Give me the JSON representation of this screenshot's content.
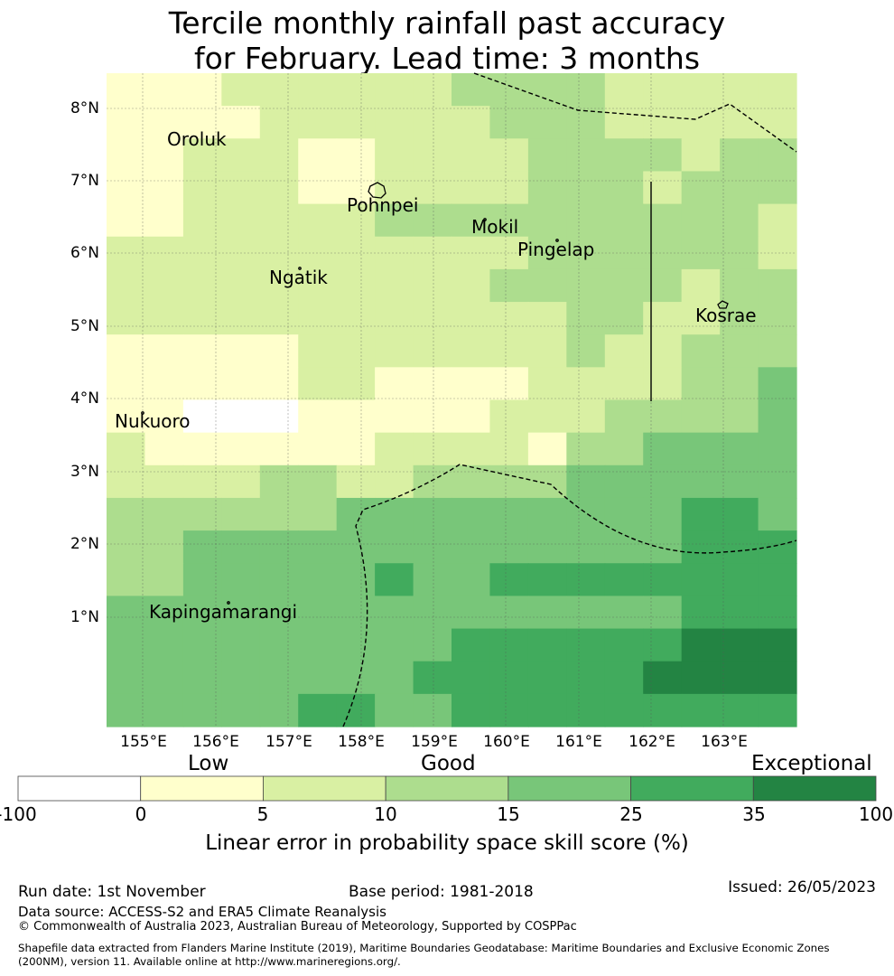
{
  "title": {
    "line1": "Tercile monthly rainfall past accuracy",
    "line2": "for February. Lead time: 3 months"
  },
  "map": {
    "lat_labels": [
      "8°N",
      "7°N",
      "6°N",
      "5°N",
      "4°N",
      "3°N",
      "2°N",
      "1°N"
    ],
    "lon_labels": [
      "155°E",
      "156°E",
      "157°E",
      "158°E",
      "159°E",
      "160°E",
      "161°E",
      "162°E",
      "163°E"
    ],
    "places": [
      "Oroluk",
      "Pohnpei",
      "Mokil",
      "Pingelap",
      "Ngatik",
      "Kosrae",
      "Nukuoro",
      "Kapingamarangi"
    ],
    "skill_grid": [
      [
        1,
        1,
        1,
        2,
        2,
        2,
        2,
        2,
        2,
        3,
        3,
        3,
        3,
        2,
        2,
        2,
        2,
        2
      ],
      [
        1,
        1,
        1,
        1,
        2,
        2,
        2,
        2,
        2,
        2,
        3,
        3,
        3,
        2,
        2,
        2,
        2,
        2
      ],
      [
        1,
        1,
        2,
        2,
        2,
        1,
        1,
        2,
        2,
        2,
        2,
        3,
        3,
        3,
        3,
        2,
        3,
        3
      ],
      [
        1,
        1,
        2,
        2,
        2,
        1,
        1,
        2,
        2,
        2,
        2,
        3,
        3,
        3,
        2,
        3,
        3,
        3
      ],
      [
        1,
        1,
        2,
        2,
        2,
        2,
        2,
        3,
        3,
        3,
        3,
        3,
        3,
        3,
        3,
        3,
        3,
        2
      ],
      [
        2,
        2,
        2,
        2,
        2,
        2,
        2,
        2,
        2,
        2,
        2,
        3,
        3,
        3,
        3,
        3,
        3,
        2
      ],
      [
        2,
        2,
        2,
        2,
        2,
        2,
        2,
        2,
        2,
        2,
        3,
        3,
        3,
        3,
        3,
        2,
        3,
        3
      ],
      [
        2,
        2,
        2,
        2,
        2,
        2,
        2,
        2,
        2,
        2,
        2,
        2,
        3,
        3,
        2,
        2,
        3,
        3
      ],
      [
        1,
        1,
        1,
        1,
        1,
        2,
        2,
        2,
        2,
        2,
        2,
        2,
        3,
        2,
        2,
        3,
        3,
        3
      ],
      [
        1,
        1,
        1,
        1,
        1,
        2,
        2,
        1,
        1,
        1,
        1,
        2,
        2,
        2,
        2,
        3,
        3,
        4
      ],
      [
        1,
        1,
        0,
        0,
        0,
        1,
        1,
        1,
        1,
        1,
        2,
        2,
        2,
        3,
        3,
        3,
        3,
        4
      ],
      [
        2,
        1,
        1,
        1,
        1,
        1,
        1,
        2,
        2,
        2,
        2,
        1,
        3,
        3,
        4,
        4,
        4,
        4
      ],
      [
        2,
        2,
        2,
        2,
        3,
        3,
        2,
        2,
        3,
        3,
        3,
        3,
        4,
        4,
        4,
        4,
        4,
        4
      ],
      [
        3,
        3,
        3,
        3,
        3,
        3,
        4,
        4,
        4,
        4,
        4,
        4,
        4,
        4,
        4,
        5,
        5,
        4
      ],
      [
        3,
        3,
        4,
        4,
        4,
        4,
        4,
        4,
        4,
        4,
        4,
        4,
        4,
        4,
        4,
        5,
        5,
        5
      ],
      [
        3,
        3,
        4,
        4,
        4,
        4,
        4,
        5,
        4,
        4,
        5,
        5,
        5,
        5,
        5,
        5,
        5,
        5
      ],
      [
        4,
        4,
        4,
        4,
        4,
        4,
        4,
        4,
        4,
        4,
        4,
        4,
        4,
        4,
        4,
        5,
        5,
        5
      ],
      [
        4,
        4,
        4,
        4,
        4,
        4,
        4,
        4,
        4,
        5,
        5,
        5,
        5,
        5,
        5,
        6,
        6,
        6
      ],
      [
        4,
        4,
        4,
        4,
        4,
        4,
        4,
        4,
        5,
        5,
        5,
        5,
        5,
        5,
        6,
        6,
        6,
        6
      ],
      [
        4,
        4,
        4,
        4,
        4,
        5,
        5,
        4,
        4,
        5,
        5,
        5,
        5,
        5,
        5,
        5,
        5,
        5
      ]
    ]
  },
  "colorbar": {
    "categories": [
      "Low",
      "Good",
      "Exceptional"
    ],
    "ticks": [
      "-100",
      "0",
      "5",
      "10",
      "15",
      "25",
      "35",
      "100"
    ],
    "colors": [
      "#ffffff",
      "#ffffcc",
      "#d9f0a3",
      "#addd8e",
      "#78c679",
      "#41ab5d",
      "#238443"
    ],
    "title": "Linear error in probability space skill score (%)"
  },
  "footer": {
    "run_date": "Run date: 1st November",
    "base_period": "Base period: 1981-2018",
    "issued": "Issued: 26/05/2023",
    "data_source": "Data source: ACCESS-S2 and ERA5 Climate Reanalysis",
    "copyright": "© Commonwealth of Australia 2023, Australian Bureau of Meteorology, Supported by COSPPac",
    "shapefile_line1": "Shapefile data extracted from Flanders Marine Institute (2019), Maritime Boundaries Geodatabase: Maritime Boundaries and Exclusive Economic Zones",
    "shapefile_line2": "(200NM), version 11. Available online at http://www.marineregions.org/."
  }
}
